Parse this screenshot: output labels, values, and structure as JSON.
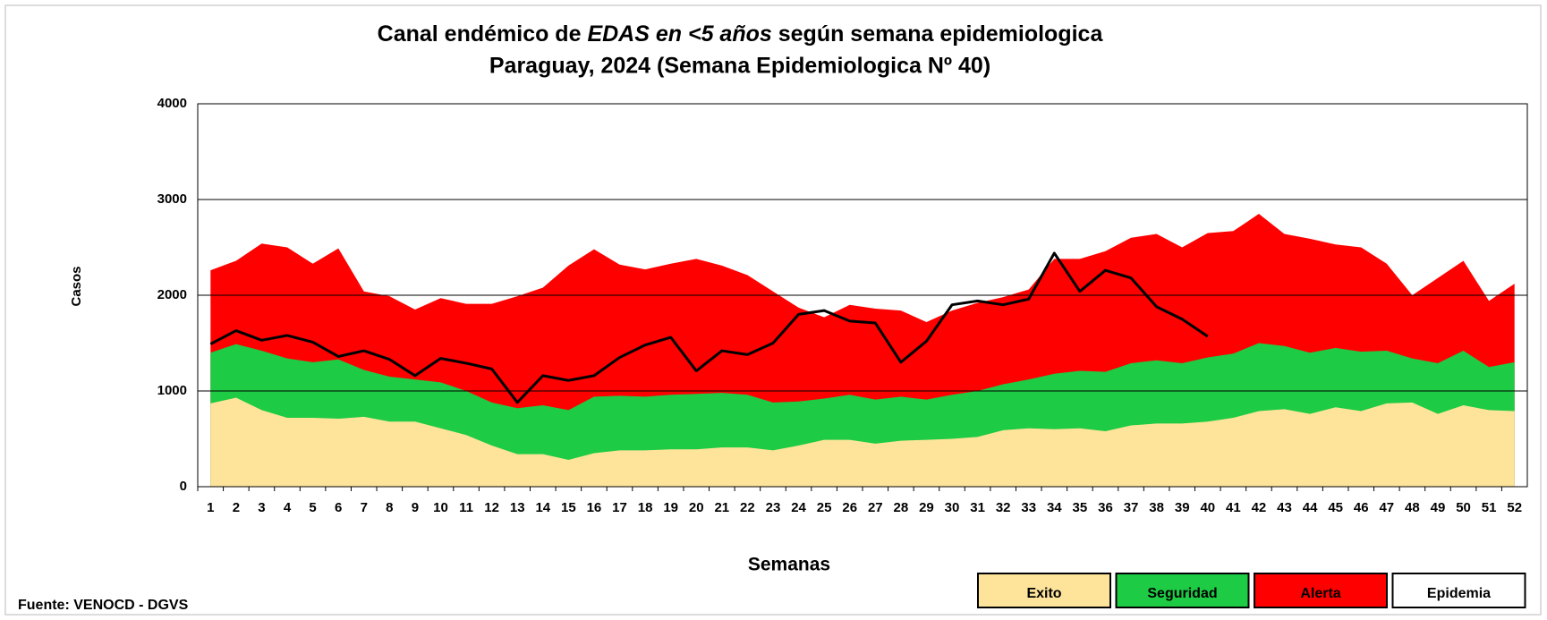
{
  "chart_data": {
    "type": "area",
    "title": "Canal endémico de",
    "title_emphasis": "EDAS en <5 años",
    "title_end": "según semana epidemiologica",
    "subtitle": "Paraguay, 2024 (Semana Epidemiologica Nº 40)",
    "y_label": "Casos",
    "x_label": "Semanas",
    "source": "Fuente: VENOCD - DGVS",
    "categories": [
      "1",
      "2",
      "3",
      "4",
      "5",
      "6",
      "7",
      "8",
      "9",
      "10",
      "11",
      "12",
      "13",
      "14",
      "15",
      "16",
      "17",
      "18",
      "19",
      "20",
      "21",
      "22",
      "23",
      "24",
      "25",
      "26",
      "27",
      "28",
      "29",
      "30",
      "31",
      "32",
      "33",
      "34",
      "35",
      "36",
      "37",
      "38",
      "39",
      "40",
      "41",
      "42",
      "43",
      "44",
      "45",
      "46",
      "47",
      "48",
      "49",
      "50",
      "51",
      "52"
    ],
    "ylim": [
      0,
      4000
    ],
    "yticks": [
      0,
      1000,
      2000,
      3000,
      4000
    ],
    "grid": true,
    "series": [
      {
        "name": "Exito",
        "color": "#fde49a",
        "values": [
          870,
          930,
          800,
          720,
          720,
          710,
          730,
          680,
          680,
          610,
          540,
          430,
          340,
          340,
          280,
          350,
          380,
          380,
          390,
          390,
          410,
          410,
          380,
          430,
          490,
          490,
          450,
          480,
          490,
          500,
          520,
          590,
          610,
          600,
          610,
          580,
          640,
          660,
          660,
          680,
          720,
          790,
          810,
          760,
          830,
          790,
          870,
          880,
          760,
          850,
          800,
          790
        ]
      },
      {
        "name": "Seguridad",
        "color": "#1ecb44",
        "values": [
          1400,
          1490,
          1420,
          1340,
          1300,
          1330,
          1220,
          1150,
          1120,
          1090,
          1000,
          880,
          820,
          850,
          800,
          940,
          950,
          940,
          960,
          970,
          980,
          960,
          880,
          890,
          920,
          960,
          910,
          940,
          910,
          960,
          1000,
          1070,
          1120,
          1180,
          1210,
          1200,
          1290,
          1320,
          1290,
          1350,
          1390,
          1500,
          1470,
          1400,
          1450,
          1410,
          1420,
          1340,
          1290,
          1420,
          1250,
          1300
        ]
      },
      {
        "name": "Alerta",
        "color": "#ff0000",
        "values": [
          2260,
          2360,
          2540,
          2500,
          2330,
          2490,
          2040,
          1990,
          1850,
          1970,
          1910,
          1910,
          1990,
          2080,
          2310,
          2480,
          2320,
          2270,
          2330,
          2380,
          2310,
          2210,
          2040,
          1870,
          1770,
          1900,
          1860,
          1840,
          1720,
          1840,
          1920,
          1980,
          2060,
          2380,
          2380,
          2460,
          2600,
          2640,
          2500,
          2650,
          2670,
          2850,
          2640,
          2590,
          2530,
          2500,
          2330,
          2000,
          2180,
          2360,
          1940,
          2120
        ]
      }
    ],
    "epidemia": {
      "name": "Epidemia",
      "color": "#ffffff"
    },
    "current": {
      "color": "#000000",
      "values": [
        1490,
        1630,
        1530,
        1580,
        1510,
        1360,
        1420,
        1330,
        1160,
        1340,
        1290,
        1230,
        880,
        1160,
        1110,
        1160,
        1350,
        1480,
        1560,
        1210,
        1420,
        1380,
        1500,
        1800,
        1840,
        1730,
        1710,
        1300,
        1520,
        1900,
        1940,
        1900,
        1960,
        2440,
        2040,
        2260,
        2180,
        1880,
        1750,
        1570
      ]
    }
  }
}
